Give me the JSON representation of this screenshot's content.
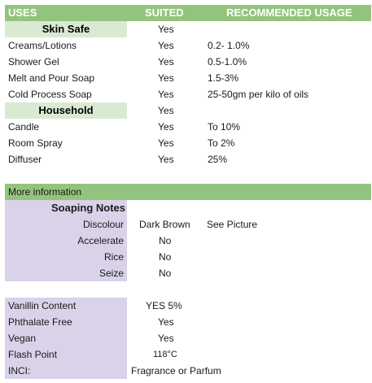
{
  "header": {
    "uses": "USES",
    "suited": "SUITED",
    "recommended": "RECOMMENDED USAGE"
  },
  "skin_safe": {
    "label": "Skin Safe",
    "suited": "Yes",
    "rows": [
      {
        "use": "Creams/Lotions",
        "suited": "Yes",
        "usage": "0.2- 1.0%"
      },
      {
        "use": "Shower Gel",
        "suited": "Yes",
        "usage": "0.5-1.0%"
      },
      {
        "use": "Melt and Pour Soap",
        "suited": "Yes",
        "usage": "1.5-3%"
      },
      {
        "use": "Cold Process Soap",
        "suited": "Yes",
        "usage": "25-50gm per kilo of oils"
      }
    ]
  },
  "household": {
    "label": "Household",
    "suited": "Yes",
    "rows": [
      {
        "use": "Candle",
        "suited": "Yes",
        "usage": "To 10%"
      },
      {
        "use": "Room Spray",
        "suited": "Yes",
        "usage": "To 2%"
      },
      {
        "use": "Diffuser",
        "suited": "Yes",
        "usage": "25%"
      }
    ]
  },
  "more_info": {
    "label": "More information"
  },
  "soaping": {
    "label": "Soaping Notes",
    "rows": [
      {
        "name": "Discolour",
        "value": "Dark Brown",
        "extra": "See Picture"
      },
      {
        "name": "Accelerate",
        "value": "No",
        "extra": ""
      },
      {
        "name": "Rice",
        "value": "No",
        "extra": ""
      },
      {
        "name": "Seize",
        "value": "No",
        "extra": ""
      }
    ]
  },
  "properties": [
    {
      "name": "Vanillin Content",
      "value": "YES 5%"
    },
    {
      "name": "Phthalate Free",
      "value": "Yes"
    },
    {
      "name": "Vegan",
      "value": "Yes"
    },
    {
      "name": "Flash Point",
      "value": "118°C"
    },
    {
      "name": "INCI:",
      "value": "Fragrance or Parfum"
    }
  ],
  "colors": {
    "header_green": "#93c47d",
    "light_green": "#d9ead3",
    "lavender": "#d9d2e9"
  }
}
